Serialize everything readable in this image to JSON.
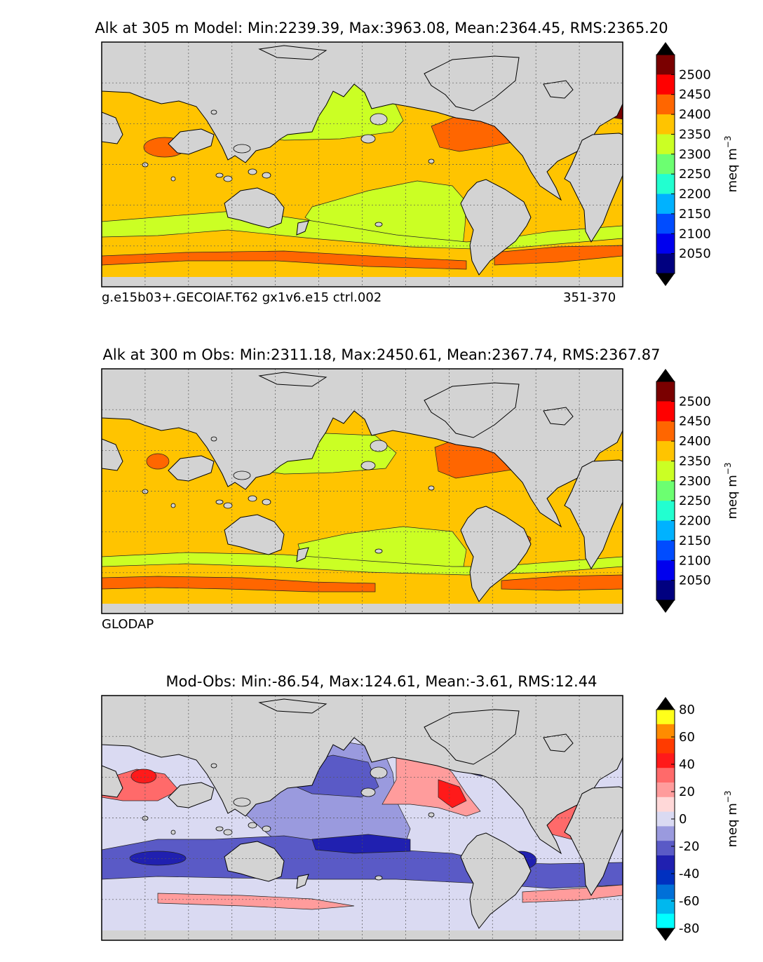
{
  "chart_data": [
    {
      "type": "heatmap",
      "title": "Alk at 305 m Model: Min:2239.39, Max:3963.08, Mean:2364.45, RMS:2365.20",
      "caption_left": "g.e15b03+.GECOIAF.T62 gx1v6.e15 ctrl.002",
      "caption_right": "351-370",
      "colorbar": {
        "label": "meq m",
        "label_sup": "−3",
        "ticks": [
          "2500",
          "2450",
          "2400",
          "2350",
          "2300",
          "2250",
          "2200",
          "2150",
          "2100",
          "2050"
        ],
        "colors": [
          "#7a0000",
          "#ff0000",
          "#ff6600",
          "#ffc400",
          "#cbff24",
          "#6cff71",
          "#22ffd0",
          "#00b2ff",
          "#004cff",
          "#0000ee",
          "#000080"
        ],
        "extend": "both"
      },
      "field": {
        "background": "#ffc400",
        "regions": [
          {
            "name": "north-pacific-gyre",
            "color": "#cbff24"
          },
          {
            "name": "south-pacific-tongue",
            "color": "#cbff24"
          },
          {
            "name": "southern-ocean-band",
            "color": "#cbff24"
          },
          {
            "name": "arctic",
            "color": "#cbff24"
          },
          {
            "name": "north-atlantic",
            "color": "#ff6600"
          },
          {
            "name": "arabian-sea",
            "color": "#ff6600"
          },
          {
            "name": "bay-of-bengal",
            "color": "#ff6600"
          },
          {
            "name": "southern-orange-streaks",
            "color": "#ff6600"
          },
          {
            "name": "mediterranean",
            "color": "#7a0000"
          },
          {
            "name": "okhotsk-patch",
            "color": "#6cff71"
          }
        ]
      }
    },
    {
      "type": "heatmap",
      "title": "Alk at 300 m Obs: Min:2311.18, Max:2450.61, Mean:2367.74, RMS:2367.87",
      "caption_left": "GLODAP",
      "colorbar": {
        "label": "meq m",
        "label_sup": "−3",
        "ticks": [
          "2500",
          "2450",
          "2400",
          "2350",
          "2300",
          "2250",
          "2200",
          "2150",
          "2100",
          "2050"
        ],
        "colors": [
          "#7a0000",
          "#ff0000",
          "#ff6600",
          "#ffc400",
          "#cbff24",
          "#6cff71",
          "#22ffd0",
          "#00b2ff",
          "#004cff",
          "#0000ee",
          "#000080"
        ],
        "extend": "both"
      },
      "field": {
        "background": "#ffc400",
        "regions": [
          {
            "name": "north-pacific-gyre",
            "color": "#cbff24"
          },
          {
            "name": "south-pacific-tongue",
            "color": "#cbff24"
          },
          {
            "name": "southern-ocean-band",
            "color": "#cbff24"
          },
          {
            "name": "north-atlantic",
            "color": "#ff6600"
          },
          {
            "name": "arabian-sea",
            "color": "#ff6600"
          },
          {
            "name": "southern-orange-streaks",
            "color": "#ff6600"
          }
        ]
      }
    },
    {
      "type": "heatmap",
      "title": "Mod-Obs: Min:-86.54, Max:124.61, Mean:-3.61, RMS:12.44",
      "colorbar": {
        "label": "meq m",
        "label_sup": "−3",
        "ticks": [
          "80",
          "60",
          "40",
          "20",
          "0",
          "-20",
          "-40",
          "-60",
          "-80"
        ],
        "colors": [
          "#ffff1a",
          "#ff8c00",
          "#ff3b00",
          "#ff1a1a",
          "#ff6a6a",
          "#ff9c9c",
          "#ffd8d8",
          "#dadaf2",
          "#9a9ade",
          "#5a5ac6",
          "#2020b0",
          "#0030c0",
          "#0070d8",
          "#00b8ee",
          "#00ffff"
        ],
        "extend": "both"
      },
      "field": {
        "background": "#dadaf2",
        "regions": [
          {
            "name": "pacific-blue",
            "color": "#9a9ade"
          },
          {
            "name": "southern-blue",
            "color": "#5a5ac6"
          },
          {
            "name": "east-pacific-red",
            "color": "#ff9c9c"
          },
          {
            "name": "indian-red",
            "color": "#ff6a6a"
          },
          {
            "name": "atlantic-blue",
            "color": "#5a5ac6"
          },
          {
            "name": "south-atlantic-red",
            "color": "#ff6a6a"
          }
        ]
      }
    }
  ]
}
